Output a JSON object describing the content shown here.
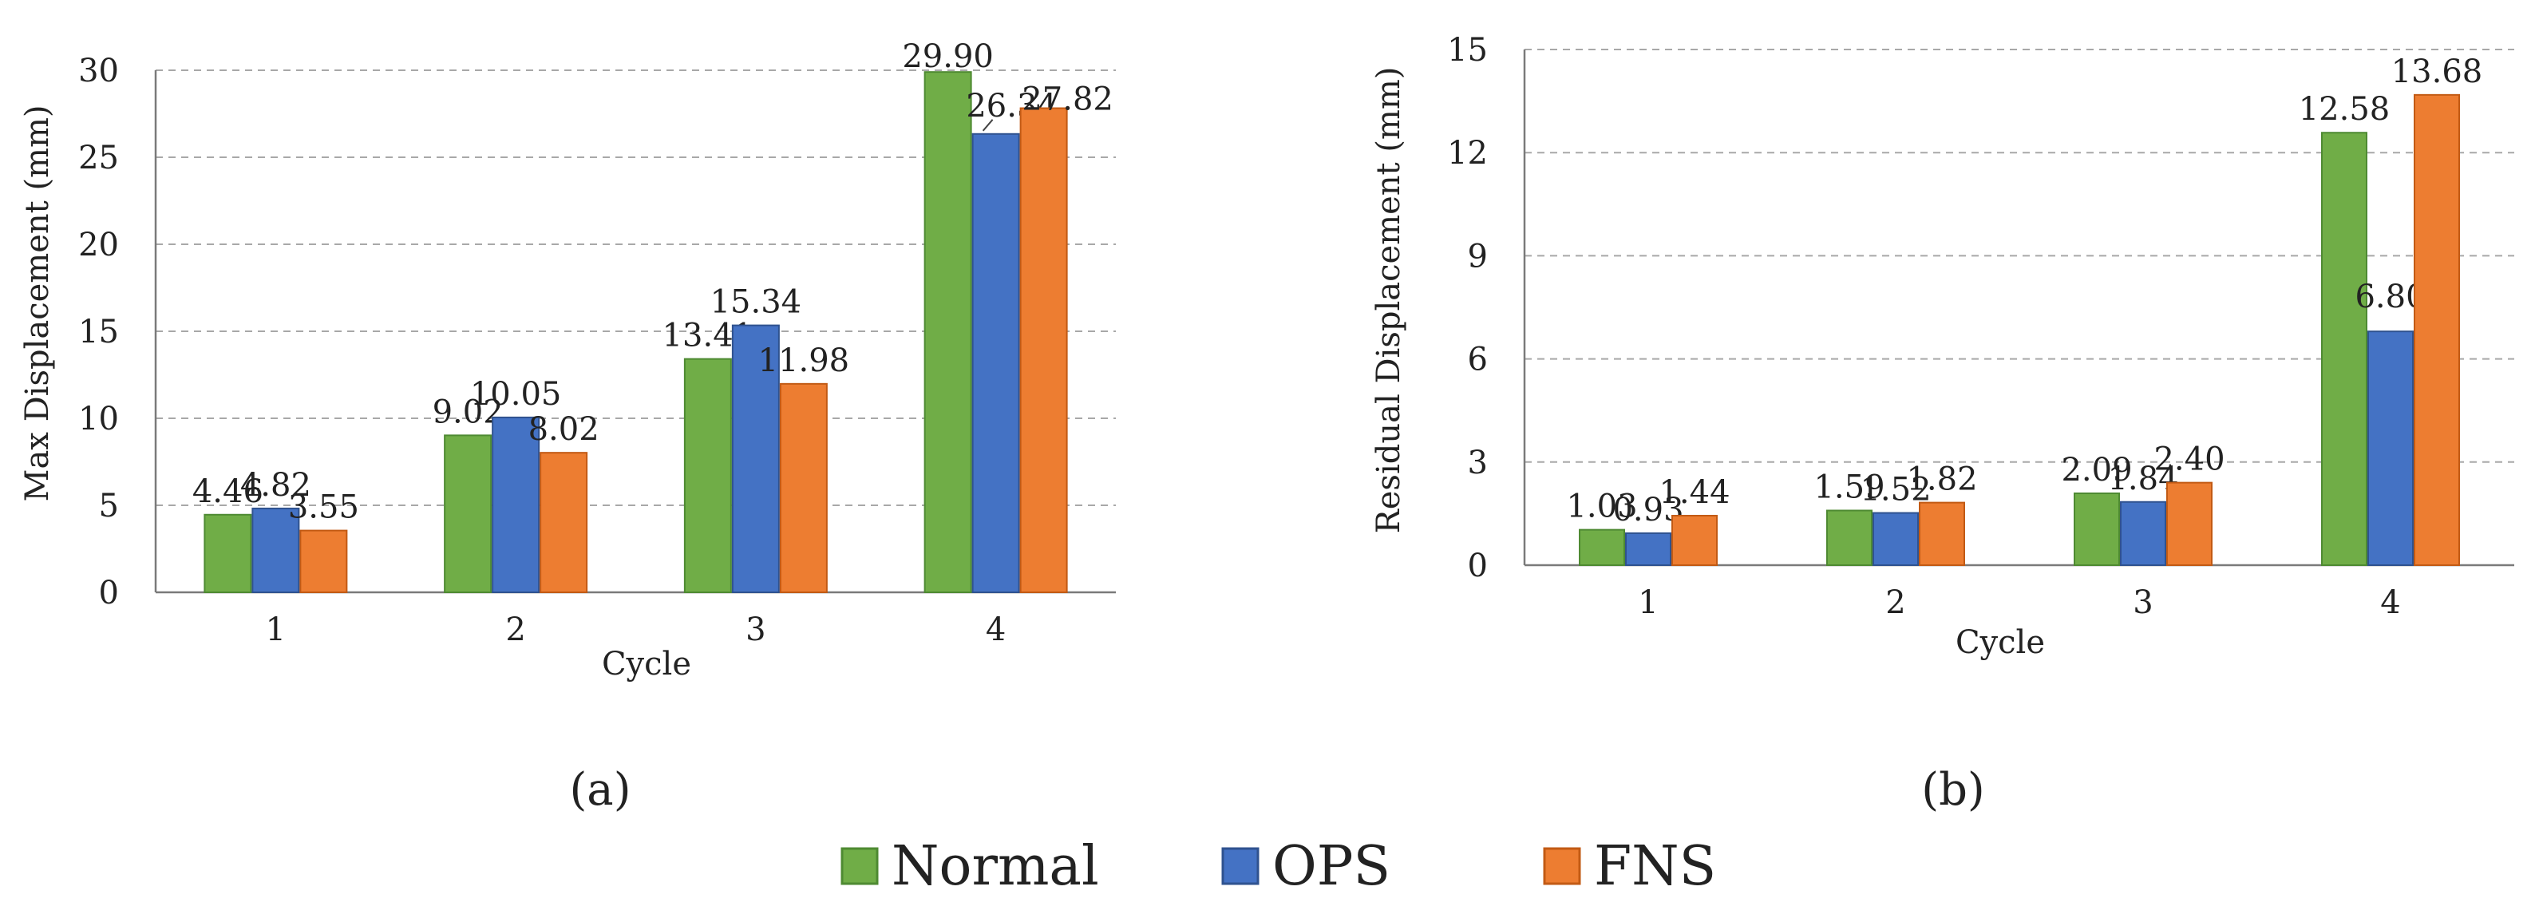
{
  "chart_data": [
    {
      "type": "bar",
      "panel_label": "(a)",
      "title": "",
      "xlabel": "Cycle",
      "ylabel": "Max Displacement (mm)",
      "categories": [
        "1",
        "2",
        "3",
        "4"
      ],
      "ylim": [
        0,
        30
      ],
      "yticks": [
        0,
        5,
        10,
        15,
        20,
        25,
        30
      ],
      "grid": true,
      "series": [
        {
          "name": "Normal",
          "values": [
            4.46,
            9.02,
            13.41,
            29.9
          ],
          "labels": [
            "4.46",
            "9.02",
            "13.41",
            "29.90"
          ]
        },
        {
          "name": "OPS",
          "values": [
            4.82,
            10.05,
            15.34,
            26.34
          ],
          "labels": [
            "4.82",
            "10.05",
            "15.34",
            "26.34"
          ]
        },
        {
          "name": "FNS",
          "values": [
            3.55,
            8.02,
            11.98,
            27.82
          ],
          "labels": [
            "3.55",
            "8.02",
            "11.98",
            "27.82"
          ]
        }
      ]
    },
    {
      "type": "bar",
      "panel_label": "(b)",
      "title": "",
      "xlabel": "Cycle",
      "ylabel": "Residual Displacement (mm)",
      "categories": [
        "1",
        "2",
        "3",
        "4"
      ],
      "ylim": [
        0,
        15
      ],
      "yticks": [
        0,
        3,
        6,
        9,
        12,
        15
      ],
      "grid": true,
      "series": [
        {
          "name": "Normal",
          "values": [
            1.03,
            1.59,
            2.09,
            12.58
          ],
          "labels": [
            "1.03",
            "1.59",
            "2.09",
            "12.58"
          ]
        },
        {
          "name": "OPS",
          "values": [
            0.93,
            1.52,
            1.84,
            6.8
          ],
          "labels": [
            "0.93",
            "1.52",
            "1.84",
            "6.80"
          ]
        },
        {
          "name": "FNS",
          "values": [
            1.44,
            1.82,
            2.4,
            13.68
          ],
          "labels": [
            "1.44",
            "1.82",
            "2.40",
            "13.68"
          ]
        }
      ]
    }
  ],
  "legend": {
    "position": "bottom-center",
    "items": [
      {
        "name": "Normal",
        "color": "#70ad47",
        "border": "#4e8a32"
      },
      {
        "name": "OPS",
        "color": "#4472c4",
        "border": "#2f528f"
      },
      {
        "name": "FNS",
        "color": "#ed7d31",
        "border": "#c25a14"
      }
    ]
  }
}
